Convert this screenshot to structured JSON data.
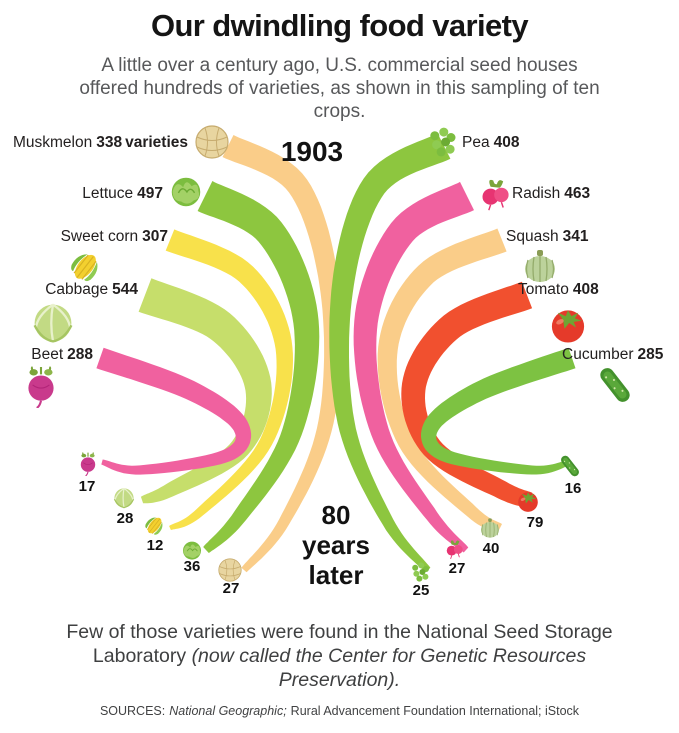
{
  "header": {
    "title": "Our dwindling food variety",
    "subtitle": "A little over a century ago, U.S. commercial seed houses offered hundreds of varieties, as shown in this sampling of ten crops."
  },
  "labels": {
    "year_start": "1903",
    "later_lines": [
      "80",
      "years",
      "later"
    ]
  },
  "footer": {
    "normal": "Few of those varieties were found in the National Seed Storage Laboratory ",
    "italic": "(now called the Center for Genetic Resources Preservation)."
  },
  "sources": {
    "label": "SOURCES:",
    "italic_part": "National Geographic;",
    "rest": "Rural Advancement Foundation International; iStock"
  },
  "chart_data": {
    "type": "area",
    "variant": "tapered-ribbon-funnel",
    "title": "Our dwindling food variety",
    "unit": "number of commercial seed varieties",
    "period_start": "1903",
    "period_end": "80 years later",
    "legend_position": "none",
    "grid": false,
    "crops": [
      {
        "key": "muskmelon",
        "name": "Muskmelon",
        "icon": "muskmelon-icon",
        "varieties_1903": 338,
        "varieties_later": 27,
        "suffix": "varieties",
        "color": "#FACD89",
        "side": "left"
      },
      {
        "key": "lettuce",
        "name": "Lettuce",
        "icon": "lettuce-icon",
        "varieties_1903": 497,
        "varieties_later": 36,
        "color": "#8DC63F",
        "side": "left"
      },
      {
        "key": "sweet_corn",
        "name": "Sweet corn",
        "icon": "corn-icon",
        "varieties_1903": 307,
        "varieties_later": 12,
        "color": "#F8E14B",
        "side": "left"
      },
      {
        "key": "cabbage",
        "name": "Cabbage",
        "icon": "cabbage-icon",
        "varieties_1903": 544,
        "varieties_later": 28,
        "color": "#C6DE6B",
        "side": "left"
      },
      {
        "key": "beet",
        "name": "Beet",
        "icon": "beet-icon",
        "varieties_1903": 288,
        "varieties_later": 17,
        "color": "#F0619F",
        "side": "left"
      },
      {
        "key": "pea",
        "name": "Pea",
        "icon": "pea-icon",
        "varieties_1903": 408,
        "varieties_later": 25,
        "color": "#8DC63F",
        "side": "right"
      },
      {
        "key": "radish",
        "name": "Radish",
        "icon": "radish-icon",
        "varieties_1903": 463,
        "varieties_later": 27,
        "color": "#F0619F",
        "side": "right"
      },
      {
        "key": "squash",
        "name": "Squash",
        "icon": "squash-icon",
        "varieties_1903": 341,
        "varieties_later": 40,
        "color": "#FACD89",
        "side": "right"
      },
      {
        "key": "tomato",
        "name": "Tomato",
        "icon": "tomato-icon",
        "varieties_1903": 408,
        "varieties_later": 79,
        "color": "#F1502F",
        "side": "right"
      },
      {
        "key": "cucumber",
        "name": "Cucumber",
        "icon": "cucumber-icon",
        "varieties_1903": 285,
        "varieties_later": 16,
        "color": "#7DC242",
        "side": "right"
      }
    ]
  }
}
